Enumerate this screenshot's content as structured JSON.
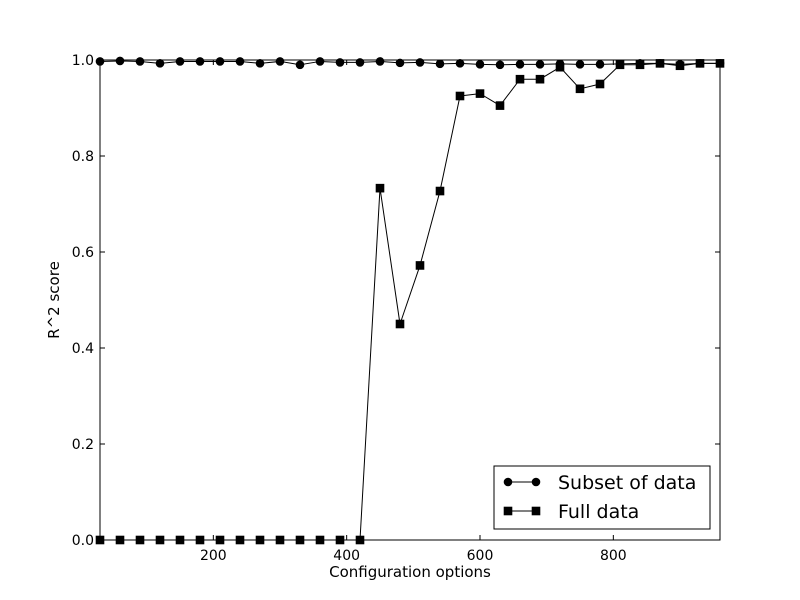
{
  "chart_data": {
    "type": "line",
    "xlabel": "Configuration options",
    "ylabel": "R^2 score",
    "xlim": [
      30,
      960
    ],
    "ylim": [
      0,
      1
    ],
    "x_ticks": [
      200,
      400,
      600,
      800
    ],
    "x_tick_labels": [
      "200",
      "400",
      "600",
      "800"
    ],
    "y_ticks": [
      0,
      0.2,
      0.4,
      0.6,
      0.8,
      1.0
    ],
    "y_tick_labels": [
      "0.0",
      "0.2",
      "0.4",
      "0.6",
      "0.8",
      "1.0"
    ],
    "grid": false,
    "legend_position": "bottom-right",
    "x": [
      30,
      60,
      90,
      120,
      150,
      180,
      210,
      240,
      270,
      300,
      330,
      360,
      390,
      420,
      450,
      480,
      510,
      540,
      570,
      600,
      630,
      660,
      690,
      720,
      750,
      780,
      810,
      840,
      870,
      900,
      930,
      960
    ],
    "series": [
      {
        "name": "Subset of data",
        "marker": "circle",
        "color": "#000000",
        "values": [
          0.997,
          0.998,
          0.997,
          0.993,
          0.997,
          0.997,
          0.997,
          0.997,
          0.993,
          0.997,
          0.99,
          0.997,
          0.995,
          0.995,
          0.997,
          0.994,
          0.995,
          0.992,
          0.993,
          0.991,
          0.99,
          0.991,
          0.991,
          0.992,
          0.991,
          0.991,
          0.992,
          0.993,
          0.993,
          0.991,
          0.993,
          0.993
        ]
      },
      {
        "name": "Full data",
        "marker": "square",
        "color": "#000000",
        "values": [
          0.0,
          0.0,
          0.0,
          0.0,
          0.0,
          0.0,
          0.0,
          0.0,
          0.0,
          0.0,
          0.0,
          0.0,
          0.0,
          0.0,
          0.733,
          0.45,
          0.572,
          0.727,
          0.925,
          0.93,
          0.905,
          0.96,
          0.96,
          0.985,
          0.94,
          0.95,
          0.99,
          0.99,
          0.993,
          0.988,
          0.993,
          0.993
        ]
      }
    ]
  }
}
